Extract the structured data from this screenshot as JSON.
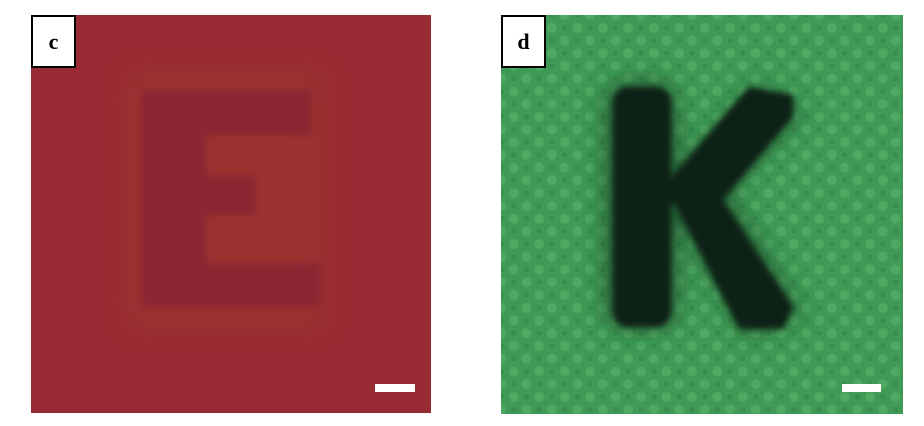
{
  "panels": [
    {
      "label": "c",
      "letter_shown": "E",
      "background_color": "#992a33",
      "letter_color": "#8a2630"
    },
    {
      "label": "d",
      "letter_shown": "K",
      "background_color": "#3f9a55",
      "letter_color": "#0f2417"
    }
  ]
}
